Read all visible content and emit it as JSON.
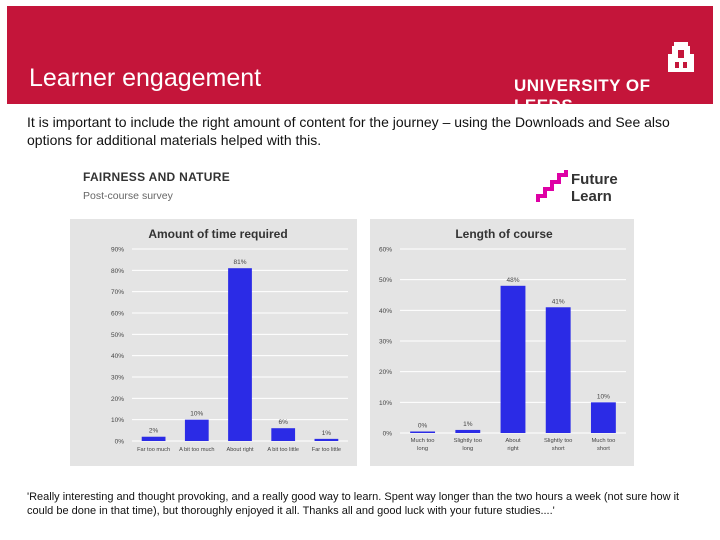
{
  "header": {
    "title": "Learner engagement",
    "university": "UNIVERSITY OF LEEDS",
    "crest_icon": "leeds-crest-icon",
    "background_color": "#c4153a"
  },
  "intro_text": "It is important to include the right amount of content for the journey – using the  Downloads and See also options for additional materials helped with this.",
  "figure": {
    "title": "FAIRNESS AND NATURE",
    "subtitle": "Post-course survey",
    "logo": {
      "line1": "Future",
      "line2": "Learn",
      "icon": "futurelearn-stairs-icon",
      "color": "#de00a5"
    }
  },
  "chart_data": [
    {
      "type": "bar",
      "title": "Amount of time required",
      "categories": [
        "Far too much",
        "A bit too much",
        "About right",
        "A bit too little",
        "Far too little"
      ],
      "values": [
        2,
        10,
        81,
        6,
        1
      ],
      "value_labels": [
        "2%",
        "10%",
        "81%",
        "6%",
        "1%"
      ],
      "ylim": [
        0,
        90
      ],
      "yticks": [
        "0%",
        "10%",
        "20%",
        "30%",
        "40%",
        "50%",
        "60%",
        "70%",
        "80%",
        "90%"
      ],
      "grid": true,
      "bar_color": "#2b2be6"
    },
    {
      "type": "bar",
      "title": "Length of course",
      "categories": [
        "Much too long",
        "Slightly too long",
        "About right",
        "Slightly too short",
        "Much too short"
      ],
      "values": [
        0,
        1,
        48,
        41,
        10
      ],
      "value_labels": [
        "0%",
        "1%",
        "48%",
        "41%",
        "10%"
      ],
      "ylim": [
        0,
        60
      ],
      "yticks": [
        "0%",
        "10%",
        "20%",
        "30%",
        "40%",
        "50%",
        "60%"
      ],
      "grid": true,
      "bar_color": "#2b2be6"
    }
  ],
  "quote": "'Really interesting and thought provoking, and a really good way to learn. Spent way longer than the two hours a week (not sure how it could be done in that time), but thoroughly enjoyed it all. Thanks all and good luck with your future studies....'"
}
